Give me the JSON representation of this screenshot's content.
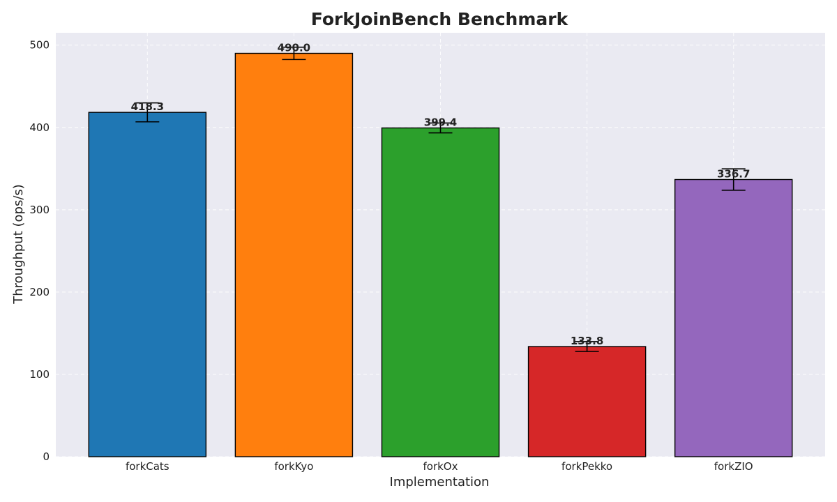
{
  "chart_data": {
    "type": "bar",
    "title": "ForkJoinBench Benchmark",
    "xlabel": "Implementation",
    "ylabel": "Throughput (ops/s)",
    "ylim": [
      0,
      515
    ],
    "yticks": [
      0,
      100,
      200,
      300,
      400,
      500
    ],
    "grid": true,
    "categories": [
      "forkCats",
      "forkKyo",
      "forkOx",
      "forkPekko",
      "forkZIO"
    ],
    "values": [
      418.3,
      490.0,
      399.4,
      133.8,
      336.7
    ],
    "value_labels": [
      "418.3",
      "490.0",
      "399.4",
      "133.8",
      "336.7"
    ],
    "errors": [
      11.5,
      7.5,
      6.0,
      6.0,
      13.0
    ],
    "colors": [
      "#1f77b4",
      "#ff7f0e",
      "#2ca02c",
      "#d62728",
      "#9467bd"
    ],
    "plot_background": "#eaeaf2"
  }
}
